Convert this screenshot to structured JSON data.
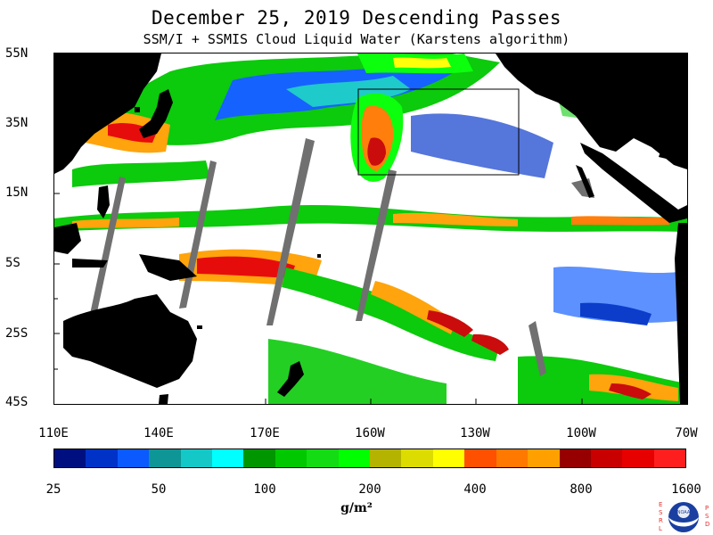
{
  "header": {
    "title": "December 25, 2019  Descending Passes",
    "subtitle": "SSM/I + SSMIS Cloud Liquid Water (Karstens algorithm)"
  },
  "map": {
    "lat_labels": [
      "55N",
      "35N",
      "15N",
      "5S",
      "25S",
      "45S"
    ],
    "lon_labels": [
      "110E",
      "140E",
      "170E",
      "160W",
      "130W",
      "100W",
      "70W"
    ]
  },
  "colorbar": {
    "colors": [
      "#000f80",
      "#0032c8",
      "#0a5aff",
      "#0e9696",
      "#14c8c8",
      "#00ffff",
      "#009600",
      "#00c800",
      "#14dc14",
      "#00ff00",
      "#b4b400",
      "#dcdc00",
      "#ffff00",
      "#ff5000",
      "#ff7800",
      "#ffa000",
      "#960000",
      "#c80000",
      "#e60000",
      "#ff1e1e"
    ],
    "tick_labels": [
      "25",
      "50",
      "100",
      "200",
      "400",
      "800",
      "1600"
    ],
    "units": "g/m²"
  },
  "logo": {
    "left_letters": "ESRL",
    "right_letters": "PSD",
    "center_text": "NOAA"
  }
}
